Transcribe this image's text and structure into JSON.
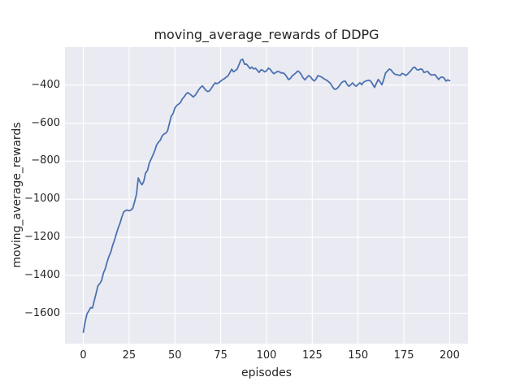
{
  "figure": {
    "background": "#ffffff"
  },
  "chart_data": {
    "type": "line",
    "title": "moving_average_rewards of DDPG",
    "xlabel": "episodes",
    "ylabel": "moving_average_rewards",
    "style": "seaborn-darkgrid",
    "grid": true,
    "legend_position": "none",
    "xlim": [
      -10,
      210
    ],
    "ylim": [
      -1760,
      -200
    ],
    "x_ticks": [
      0,
      25,
      50,
      75,
      100,
      125,
      150,
      175,
      200
    ],
    "x_tick_labels": [
      "0",
      "25",
      "50",
      "75",
      "100",
      "125",
      "150",
      "175",
      "200"
    ],
    "y_ticks": [
      -400,
      -600,
      -800,
      -1000,
      -1200,
      -1400,
      -1600
    ],
    "y_tick_labels": [
      "−400",
      "−600",
      "−800",
      "−1000",
      "−1200",
      "−1400",
      "−1600"
    ],
    "colors": {
      "line": "#4C72B0",
      "axes_background": "#EAEAF2",
      "grid": "#FFFFFF",
      "text": "#262626",
      "figure_background": "#FFFFFF"
    },
    "series": [
      {
        "name": "moving_average_rewards",
        "x_start": 0,
        "x_step": 1,
        "values": [
          -1700,
          -1645,
          -1603,
          -1588,
          -1570,
          -1572,
          -1532,
          -1495,
          -1455,
          -1444,
          -1427,
          -1388,
          -1365,
          -1330,
          -1300,
          -1278,
          -1243,
          -1216,
          -1183,
          -1152,
          -1127,
          -1095,
          -1068,
          -1060,
          -1057,
          -1061,
          -1057,
          -1048,
          -1013,
          -975,
          -888,
          -910,
          -924,
          -906,
          -862,
          -850,
          -810,
          -790,
          -768,
          -745,
          -715,
          -700,
          -690,
          -668,
          -657,
          -653,
          -640,
          -601,
          -563,
          -550,
          -520,
          -507,
          -500,
          -492,
          -473,
          -462,
          -448,
          -439,
          -446,
          -453,
          -462,
          -454,
          -440,
          -424,
          -412,
          -404,
          -416,
          -428,
          -434,
          -429,
          -415,
          -400,
          -388,
          -392,
          -387,
          -379,
          -371,
          -366,
          -358,
          -351,
          -334,
          -316,
          -330,
          -323,
          -315,
          -292,
          -268,
          -264,
          -290,
          -289,
          -300,
          -313,
          -305,
          -315,
          -311,
          -322,
          -333,
          -319,
          -322,
          -330,
          -325,
          -311,
          -316,
          -330,
          -340,
          -334,
          -328,
          -330,
          -336,
          -335,
          -342,
          -355,
          -371,
          -365,
          -352,
          -344,
          -336,
          -326,
          -331,
          -345,
          -362,
          -372,
          -360,
          -350,
          -356,
          -369,
          -378,
          -369,
          -350,
          -353,
          -357,
          -364,
          -370,
          -375,
          -383,
          -392,
          -408,
          -421,
          -421,
          -413,
          -400,
          -387,
          -380,
          -379,
          -396,
          -406,
          -398,
          -388,
          -400,
          -406,
          -396,
          -387,
          -398,
          -384,
          -379,
          -376,
          -374,
          -380,
          -396,
          -412,
          -390,
          -370,
          -383,
          -398,
          -370,
          -336,
          -326,
          -315,
          -320,
          -333,
          -342,
          -345,
          -347,
          -349,
          -338,
          -342,
          -349,
          -342,
          -332,
          -322,
          -308,
          -306,
          -318,
          -320,
          -315,
          -317,
          -334,
          -330,
          -328,
          -340,
          -347,
          -346,
          -345,
          -358,
          -370,
          -359,
          -357,
          -363,
          -379,
          -372,
          -377
        ]
      }
    ]
  }
}
